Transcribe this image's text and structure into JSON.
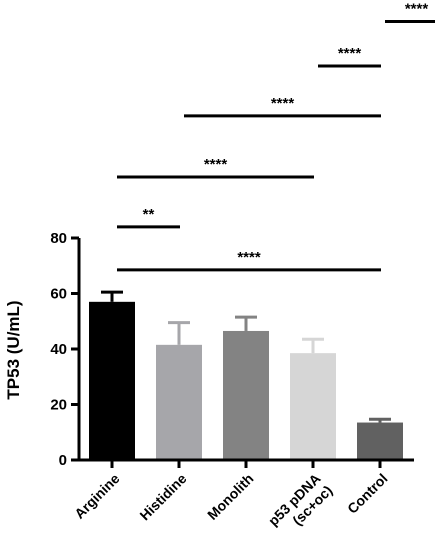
{
  "chart_data": {
    "type": "bar",
    "title": "",
    "xlabel": "",
    "ylabel": "TP53 (U/mL)",
    "ylim": [
      0,
      80
    ],
    "yticks": [
      0,
      20,
      40,
      60,
      80
    ],
    "grid": false,
    "categories": [
      {
        "lines": [
          "Arginine"
        ]
      },
      {
        "lines": [
          "Histidine"
        ]
      },
      {
        "lines": [
          "Monolith"
        ]
      },
      {
        "lines": [
          "p53 pDNA",
          "(sc+oc)"
        ]
      },
      {
        "lines": [
          "Control"
        ]
      }
    ],
    "values": [
      57,
      41.5,
      46.5,
      38.5,
      13.5
    ],
    "errors": [
      3.5,
      8,
      5,
      5,
      1.2
    ],
    "colors": [
      "#000000",
      "#a6a6aa",
      "#838383",
      "#d6d6d6",
      "#616161"
    ],
    "significance": [
      {
        "label": "**",
        "from": 0,
        "to": 1,
        "y": 84
      },
      {
        "label": "****",
        "from": 0,
        "to": 4,
        "y": 68.5
      },
      {
        "label": "****",
        "from": 0,
        "to": 3,
        "y": 102
      },
      {
        "label": "****",
        "from": 1,
        "to": 4,
        "y": 124
      },
      {
        "label": "****",
        "from": 3,
        "to": 4,
        "y": 142
      },
      {
        "label": "****",
        "from": 4,
        "to": 5,
        "y": 158
      }
    ]
  }
}
